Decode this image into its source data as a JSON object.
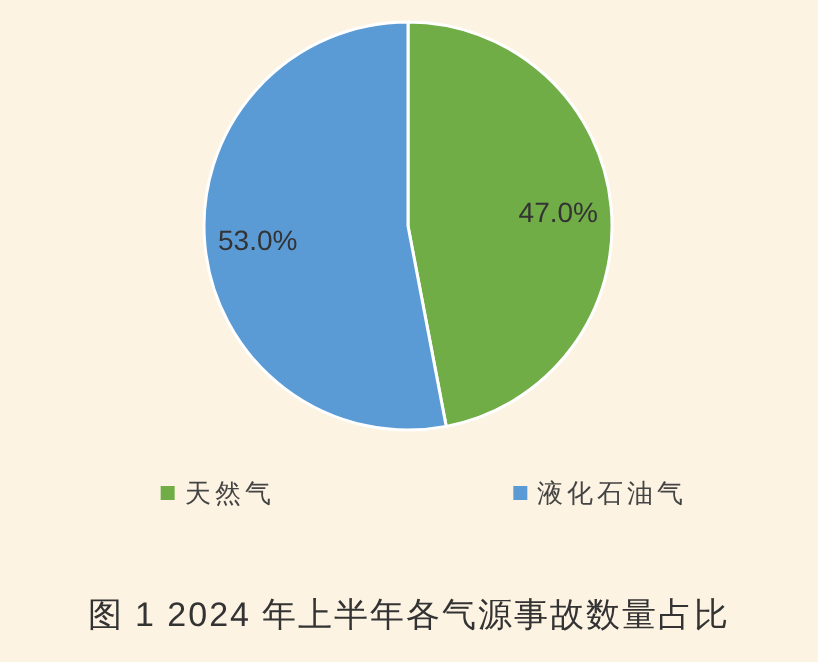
{
  "chart_data": {
    "type": "pie",
    "title": "图 1 2024 年上半年各气源事故数量占比",
    "categories": [
      "天然气",
      "液化石油气"
    ],
    "values": [
      47.0,
      53.0
    ],
    "value_labels": [
      "47.0%",
      "53.0%"
    ],
    "colors": [
      "#70ad47",
      "#5b9bd5"
    ],
    "legend": "bottom"
  }
}
